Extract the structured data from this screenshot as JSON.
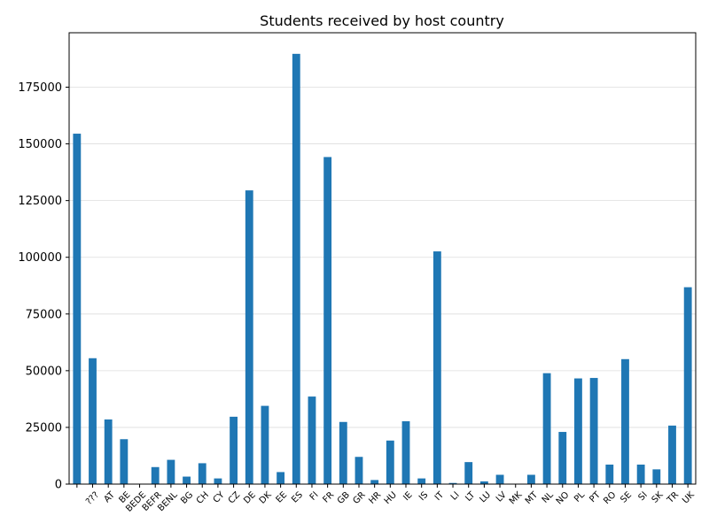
{
  "chart_data": {
    "type": "bar",
    "title": "Students received by host country",
    "xlabel": "",
    "ylabel": "",
    "categories": [
      "",
      "???",
      "AT",
      "BE",
      "BEDE",
      "BEFR",
      "BENL",
      "BG",
      "CH",
      "CY",
      "CZ",
      "DE",
      "DK",
      "EE",
      "ES",
      "FI",
      "FR",
      "GB",
      "GR",
      "HR",
      "HU",
      "IE",
      "IS",
      "IT",
      "LI",
      "LT",
      "LU",
      "LV",
      "MK",
      "MT",
      "NL",
      "NO",
      "PL",
      "PT",
      "RO",
      "SE",
      "SI",
      "SK",
      "TR",
      "UK"
    ],
    "values": [
      154500,
      55500,
      28500,
      19800,
      150,
      7500,
      10700,
      3300,
      9200,
      2500,
      29700,
      129500,
      34500,
      5300,
      189700,
      38600,
      144200,
      27400,
      12000,
      1800,
      19200,
      27700,
      2500,
      102600,
      500,
      9700,
      1200,
      4100,
      100,
      4100,
      48900,
      23000,
      46600,
      46800,
      8600,
      55100,
      8600,
      6500,
      25800,
      86800
    ],
    "ylim": [
      0,
      199000
    ],
    "yticks": [
      0,
      25000,
      50000,
      75000,
      100000,
      125000,
      150000,
      175000
    ],
    "grid": "horizontal",
    "legend": "none",
    "bar_color": "#1f77b4",
    "grid_color": "#dddddd"
  }
}
